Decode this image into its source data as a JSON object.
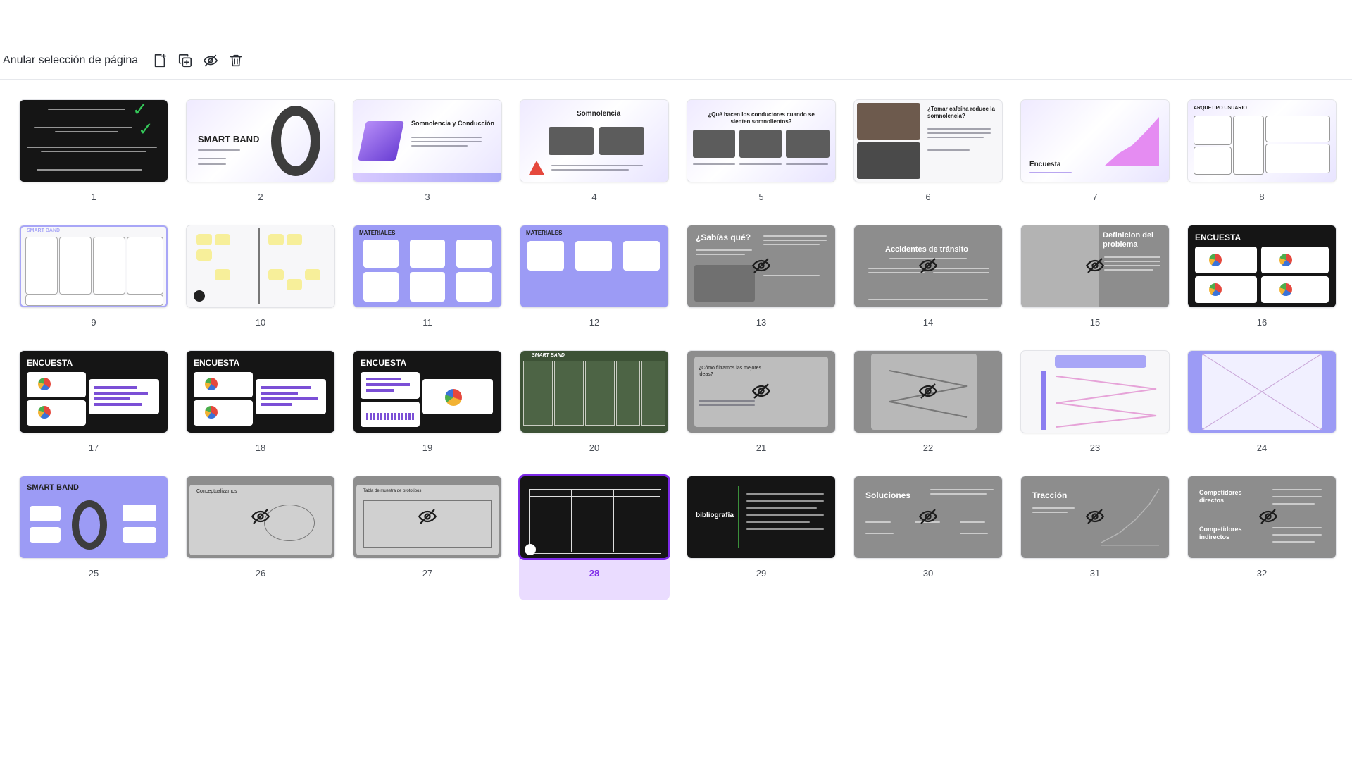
{
  "toolbar": {
    "deselect_label": "Anular selección de página",
    "icons": [
      "add-page-icon",
      "duplicate-page-icon",
      "hide-page-icon",
      "delete-page-icon"
    ]
  },
  "colors": {
    "accent": "#7d2ae8",
    "selected_bg": "#eadcff"
  },
  "slides": [
    {
      "number": "1",
      "title": "",
      "style": "dark",
      "hidden": false
    },
    {
      "number": "2",
      "title": "SMART BAND",
      "style": "light",
      "hidden": false
    },
    {
      "number": "3",
      "title": "Somnolencia y Conducción",
      "style": "light",
      "hidden": false
    },
    {
      "number": "4",
      "title": "Somnolencia",
      "style": "light",
      "hidden": false
    },
    {
      "number": "5",
      "title": "¿Qué hacen los conductores cuando se sienten somnolientos?",
      "style": "light",
      "hidden": false
    },
    {
      "number": "6",
      "title": "¿Tomar cafeína reduce la somnolencia?",
      "style": "light",
      "hidden": false
    },
    {
      "number": "7",
      "title": "Encuesta",
      "style": "light",
      "hidden": false
    },
    {
      "number": "8",
      "title": "ARQUETIPO USUARIO",
      "style": "light",
      "hidden": false
    },
    {
      "number": "9",
      "title": "SMART BAND",
      "style": "white",
      "hidden": false
    },
    {
      "number": "10",
      "title": "",
      "style": "white",
      "hidden": false
    },
    {
      "number": "11",
      "title": "MATERIALES",
      "style": "purple",
      "hidden": false
    },
    {
      "number": "12",
      "title": "MATERIALES",
      "style": "purple",
      "hidden": false
    },
    {
      "number": "13",
      "title": "¿Sabías qué?",
      "style": "grey",
      "hidden": true
    },
    {
      "number": "14",
      "title": "Accidentes de tránsito",
      "style": "grey",
      "hidden": true
    },
    {
      "number": "15",
      "title": "Definicion del problema",
      "style": "grey",
      "hidden": true
    },
    {
      "number": "16",
      "title": "ENCUESTA",
      "style": "dark",
      "hidden": false
    },
    {
      "number": "17",
      "title": "ENCUESTA",
      "style": "dark",
      "hidden": false
    },
    {
      "number": "18",
      "title": "ENCUESTA",
      "style": "dark",
      "hidden": false
    },
    {
      "number": "19",
      "title": "ENCUESTA",
      "style": "dark",
      "hidden": false
    },
    {
      "number": "20",
      "title": "SMART BAND",
      "style": "green",
      "hidden": false
    },
    {
      "number": "21",
      "title": "¿Cómo filtramos las mejores ideas?",
      "style": "grey",
      "hidden": true
    },
    {
      "number": "22",
      "title": "",
      "style": "grey",
      "hidden": true
    },
    {
      "number": "23",
      "title": "",
      "style": "white",
      "hidden": false
    },
    {
      "number": "24",
      "title": "",
      "style": "purple",
      "hidden": false
    },
    {
      "number": "25",
      "title": "SMART BAND",
      "style": "purple",
      "hidden": false
    },
    {
      "number": "26",
      "title": "Conceptualizamos",
      "style": "grey",
      "hidden": true
    },
    {
      "number": "27",
      "title": "Tabla de muestra de prototipos",
      "style": "grey",
      "hidden": true
    },
    {
      "number": "28",
      "title": "",
      "style": "dark",
      "hidden": false,
      "selected": true
    },
    {
      "number": "29",
      "title": "bibliografía",
      "style": "dark",
      "hidden": false
    },
    {
      "number": "30",
      "title": "Soluciones",
      "style": "grey",
      "hidden": true
    },
    {
      "number": "31",
      "title": "Tracción",
      "style": "grey",
      "hidden": true
    },
    {
      "number": "32",
      "title": "Competidores directos",
      "subtitle": "Competidores indirectos",
      "style": "grey",
      "hidden": true
    }
  ]
}
